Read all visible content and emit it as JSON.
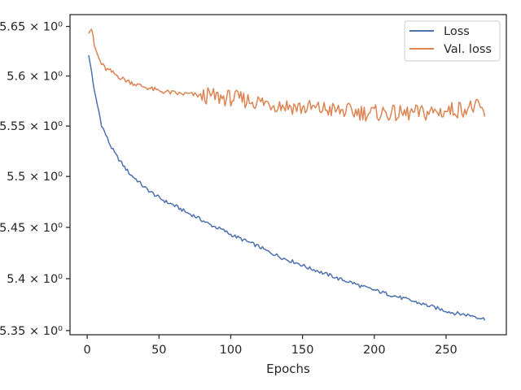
{
  "chart_data": {
    "type": "line",
    "title": "",
    "xlabel": "Epochs",
    "ylabel": "",
    "xlim": [
      -12,
      292
    ],
    "ylim": [
      5.346,
      5.662
    ],
    "yscale": "log",
    "grid": false,
    "legend_position": "top-right",
    "x_ticks": [
      0,
      50,
      100,
      150,
      200,
      250
    ],
    "x_tick_labels": [
      "0",
      "50",
      "100",
      "150",
      "200",
      "250"
    ],
    "y_ticks": [
      5.35,
      5.4,
      5.45,
      5.5,
      5.55,
      5.6,
      5.65
    ],
    "y_tick_labels": [
      "5.35 × 10⁰",
      "5.4 × 10⁰",
      "5.45 × 10⁰",
      "5.5 × 10⁰",
      "5.55 × 10⁰",
      "5.6 × 10⁰",
      "5.65 × 10⁰"
    ],
    "series": [
      {
        "name": "Loss",
        "color": "#4c72b0",
        "points": [
          [
            1,
            5.62
          ],
          [
            3,
            5.605
          ],
          [
            5,
            5.584
          ],
          [
            8,
            5.565
          ],
          [
            10,
            5.551
          ],
          [
            13,
            5.541
          ],
          [
            16,
            5.531
          ],
          [
            20,
            5.521
          ],
          [
            25,
            5.511
          ],
          [
            30,
            5.502
          ],
          [
            35,
            5.496
          ],
          [
            40,
            5.489
          ],
          [
            45,
            5.484
          ],
          [
            50,
            5.479
          ],
          [
            55,
            5.475
          ],
          [
            60,
            5.472
          ],
          [
            65,
            5.468
          ],
          [
            70,
            5.464
          ],
          [
            75,
            5.461
          ],
          [
            80,
            5.457
          ],
          [
            85,
            5.453
          ],
          [
            90,
            5.45
          ],
          [
            95,
            5.447
          ],
          [
            100,
            5.443
          ],
          [
            105,
            5.44
          ],
          [
            110,
            5.437
          ],
          [
            115,
            5.434
          ],
          [
            120,
            5.431
          ],
          [
            125,
            5.427
          ],
          [
            130,
            5.424
          ],
          [
            135,
            5.421
          ],
          [
            140,
            5.418
          ],
          [
            145,
            5.416
          ],
          [
            150,
            5.413
          ],
          [
            155,
            5.41
          ],
          [
            160,
            5.408
          ],
          [
            165,
            5.405
          ],
          [
            170,
            5.403
          ],
          [
            175,
            5.4
          ],
          [
            180,
            5.398
          ],
          [
            185,
            5.396
          ],
          [
            190,
            5.393
          ],
          [
            195,
            5.391
          ],
          [
            200,
            5.389
          ],
          [
            205,
            5.387
          ],
          [
            210,
            5.385
          ],
          [
            215,
            5.383
          ],
          [
            220,
            5.381
          ],
          [
            225,
            5.379
          ],
          [
            230,
            5.377
          ],
          [
            235,
            5.375
          ],
          [
            240,
            5.373
          ],
          [
            245,
            5.371
          ],
          [
            250,
            5.369
          ],
          [
            255,
            5.367
          ],
          [
            260,
            5.366
          ],
          [
            265,
            5.365
          ],
          [
            270,
            5.364
          ],
          [
            274,
            5.362
          ],
          [
            277,
            5.361
          ]
        ]
      },
      {
        "name": "Val. loss",
        "color": "#dd8452",
        "points": [
          [
            1,
            5.645
          ],
          [
            3,
            5.648
          ],
          [
            5,
            5.63
          ],
          [
            8,
            5.618
          ],
          [
            10,
            5.612
          ],
          [
            13,
            5.607
          ],
          [
            16,
            5.605
          ],
          [
            20,
            5.601
          ],
          [
            25,
            5.597
          ],
          [
            30,
            5.594
          ],
          [
            35,
            5.591
          ],
          [
            40,
            5.589
          ],
          [
            45,
            5.587
          ],
          [
            50,
            5.585
          ],
          [
            55,
            5.584
          ],
          [
            60,
            5.583
          ],
          [
            65,
            5.582
          ],
          [
            70,
            5.582
          ],
          [
            75,
            5.581
          ],
          [
            80,
            5.58
          ],
          [
            85,
            5.58
          ],
          [
            90,
            5.579
          ],
          [
            95,
            5.578
          ],
          [
            100,
            5.578
          ],
          [
            105,
            5.577
          ],
          [
            110,
            5.576
          ],
          [
            115,
            5.575
          ],
          [
            120,
            5.574
          ],
          [
            125,
            5.573
          ],
          [
            130,
            5.572
          ],
          [
            135,
            5.571
          ],
          [
            140,
            5.57
          ],
          [
            145,
            5.569
          ],
          [
            150,
            5.568
          ],
          [
            155,
            5.568
          ],
          [
            160,
            5.567
          ],
          [
            165,
            5.567
          ],
          [
            170,
            5.566
          ],
          [
            175,
            5.565
          ],
          [
            180,
            5.565
          ],
          [
            185,
            5.564
          ],
          [
            190,
            5.564
          ],
          [
            195,
            5.563
          ],
          [
            200,
            5.563
          ],
          [
            205,
            5.563
          ],
          [
            210,
            5.563
          ],
          [
            215,
            5.562
          ],
          [
            220,
            5.562
          ],
          [
            225,
            5.563
          ],
          [
            230,
            5.563
          ],
          [
            235,
            5.563
          ],
          [
            240,
            5.564
          ],
          [
            245,
            5.564
          ],
          [
            250,
            5.565
          ],
          [
            255,
            5.566
          ],
          [
            260,
            5.567
          ],
          [
            265,
            5.568
          ],
          [
            270,
            5.569
          ],
          [
            274,
            5.567
          ],
          [
            277,
            5.562
          ]
        ]
      }
    ]
  }
}
